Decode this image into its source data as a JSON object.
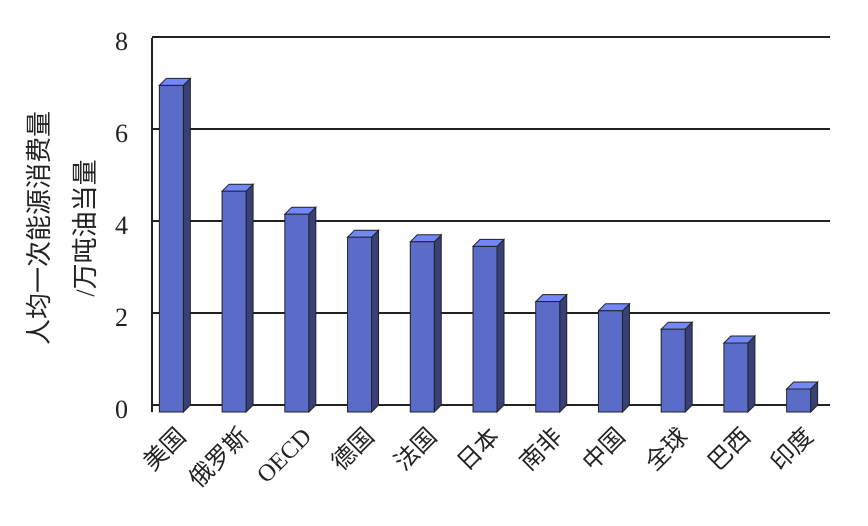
{
  "chart_data": {
    "type": "bar",
    "ylabel": [
      "人均一次能源消费量",
      "/万吨油当量"
    ],
    "categories": [
      "美国",
      "俄罗斯",
      "OECD",
      "德国",
      "法国",
      "日本",
      "南非",
      "中国",
      "全球",
      "巴西",
      "印度"
    ],
    "values": [
      7.1,
      4.8,
      4.3,
      3.8,
      3.7,
      3.6,
      2.4,
      2.2,
      1.8,
      1.5,
      0.5
    ],
    "color": "#5b6cc8",
    "ylim": [
      0,
      8
    ],
    "yticks": [
      0,
      2,
      4,
      6,
      8
    ],
    "grid": true
  }
}
